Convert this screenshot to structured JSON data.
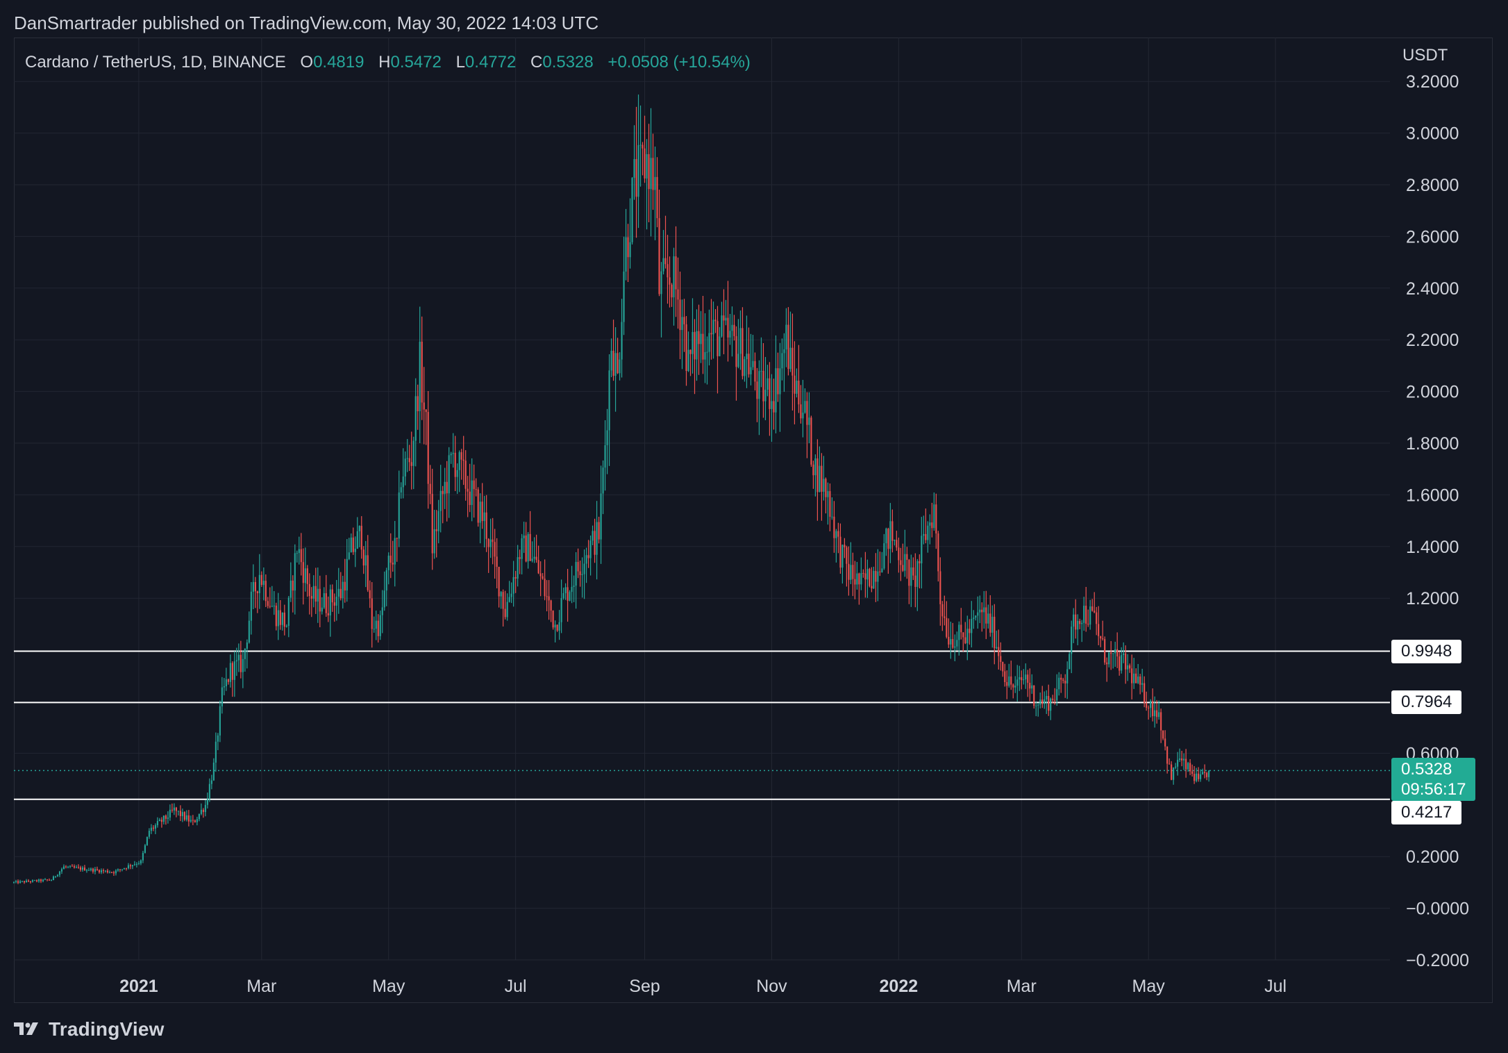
{
  "header": {
    "publisher_line": "DanSmartrader published on TradingView.com, May 30, 2022 14:03 UTC"
  },
  "symbol": {
    "name": "Cardano / TetherUS, 1D, BINANCE",
    "open_label": "O",
    "open": "0.4819",
    "high_label": "H",
    "high": "0.5472",
    "low_label": "L",
    "low": "0.4772",
    "close_label": "C",
    "close": "0.5328",
    "change": "+0.0508 (+10.54%)"
  },
  "axis": {
    "unit": "USDT"
  },
  "price_tags": {
    "level_1": "0.9948",
    "level_2": "0.7964",
    "level_3": "0.4217",
    "current_price": "0.5328",
    "countdown": "09:56:17"
  },
  "footer": {
    "brand": "TradingView"
  },
  "colors": {
    "up": "#26a69a",
    "down": "#ef5350",
    "background": "#131722",
    "grid": "#2a2e39"
  },
  "chart_data": {
    "type": "candlestick",
    "symbol": "Cardano / TetherUS",
    "interval": "1D",
    "exchange": "BINANCE",
    "y_tick_labels": [
      "3.2000",
      "3.0000",
      "2.8000",
      "2.6000",
      "2.4000",
      "2.2000",
      "2.0000",
      "1.8000",
      "1.6000",
      "1.4000",
      "1.2000",
      "0.6000",
      "0.2000",
      "−0.0000",
      "−0.2000"
    ],
    "ylim": [
      -0.2,
      3.3
    ],
    "x_tick_labels": [
      {
        "label": "2021",
        "date": "2021-01-01",
        "bold": true
      },
      {
        "label": "Mar",
        "date": "2021-03-01"
      },
      {
        "label": "May",
        "date": "2021-05-01"
      },
      {
        "label": "Jul",
        "date": "2021-07-01"
      },
      {
        "label": "Sep",
        "date": "2021-09-01"
      },
      {
        "label": "Nov",
        "date": "2021-11-01"
      },
      {
        "label": "2022",
        "date": "2022-01-01",
        "bold": true
      },
      {
        "label": "Mar",
        "date": "2022-03-01"
      },
      {
        "label": "May",
        "date": "2022-05-01"
      },
      {
        "label": "Jul",
        "date": "2022-07-01"
      }
    ],
    "x_range": [
      "2020-11-02",
      "2022-08-25"
    ],
    "horizontal_lines": [
      0.9948,
      0.7964,
      0.4217
    ],
    "current_price": 0.5328,
    "grid": true,
    "price_path": [
      [
        "2020-11-02",
        0.1
      ],
      [
        "2020-11-20",
        0.11
      ],
      [
        "2020-11-26",
        0.16
      ],
      [
        "2020-12-20",
        0.14
      ],
      [
        "2020-12-29",
        0.17
      ],
      [
        "2021-01-02",
        0.18
      ],
      [
        "2021-01-06",
        0.3
      ],
      [
        "2021-01-14",
        0.35
      ],
      [
        "2021-01-18",
        0.38
      ],
      [
        "2021-01-27",
        0.33
      ],
      [
        "2021-02-02",
        0.4
      ],
      [
        "2021-02-06",
        0.55
      ],
      [
        "2021-02-10",
        0.82
      ],
      [
        "2021-02-14",
        0.92
      ],
      [
        "2021-02-20",
        0.95
      ],
      [
        "2021-02-24",
        1.18
      ],
      [
        "2021-02-28",
        1.3
      ],
      [
        "2021-03-07",
        1.15
      ],
      [
        "2021-03-13",
        1.1
      ],
      [
        "2021-03-18",
        1.4
      ],
      [
        "2021-03-25",
        1.2
      ],
      [
        "2021-04-01",
        1.18
      ],
      [
        "2021-04-08",
        1.22
      ],
      [
        "2021-04-13",
        1.38
      ],
      [
        "2021-04-18",
        1.45
      ],
      [
        "2021-04-23",
        1.1
      ],
      [
        "2021-04-27",
        1.1
      ],
      [
        "2021-05-01",
        1.33
      ],
      [
        "2021-05-05",
        1.4
      ],
      [
        "2021-05-07",
        1.68
      ],
      [
        "2021-05-12",
        1.75
      ],
      [
        "2021-05-16",
        2.1
      ],
      [
        "2021-05-19",
        1.85
      ],
      [
        "2021-05-22",
        1.4
      ],
      [
        "2021-05-27",
        1.6
      ],
      [
        "2021-06-01",
        1.75
      ],
      [
        "2021-06-04",
        1.7
      ],
      [
        "2021-06-10",
        1.6
      ],
      [
        "2021-06-16",
        1.5
      ],
      [
        "2021-06-22",
        1.3
      ],
      [
        "2021-06-26",
        1.15
      ],
      [
        "2021-07-03",
        1.38
      ],
      [
        "2021-07-08",
        1.4
      ],
      [
        "2021-07-14",
        1.25
      ],
      [
        "2021-07-20",
        1.1
      ],
      [
        "2021-07-24",
        1.2
      ],
      [
        "2021-07-30",
        1.3
      ],
      [
        "2021-08-04",
        1.38
      ],
      [
        "2021-08-10",
        1.45
      ],
      [
        "2021-08-13",
        1.8
      ],
      [
        "2021-08-16",
        2.2
      ],
      [
        "2021-08-19",
        2.05
      ],
      [
        "2021-08-22",
        2.5
      ],
      [
        "2021-08-27",
        2.8
      ],
      [
        "2021-09-02",
        2.9
      ],
      [
        "2021-09-06",
        2.8
      ],
      [
        "2021-09-08",
        2.4
      ],
      [
        "2021-09-14",
        2.45
      ],
      [
        "2021-09-19",
        2.3
      ],
      [
        "2021-09-22",
        2.1
      ],
      [
        "2021-09-26",
        2.2
      ],
      [
        "2021-10-04",
        2.22
      ],
      [
        "2021-10-11",
        2.2
      ],
      [
        "2021-10-19",
        2.15
      ],
      [
        "2021-10-26",
        2.0
      ],
      [
        "2021-11-02",
        2.0
      ],
      [
        "2021-11-08",
        2.2
      ],
      [
        "2021-11-11",
        2.05
      ],
      [
        "2021-11-16",
        1.95
      ],
      [
        "2021-11-22",
        1.7
      ],
      [
        "2021-11-28",
        1.6
      ],
      [
        "2021-12-03",
        1.4
      ],
      [
        "2021-12-08",
        1.3
      ],
      [
        "2021-12-14",
        1.25
      ],
      [
        "2021-12-20",
        1.3
      ],
      [
        "2021-12-28",
        1.45
      ],
      [
        "2022-01-03",
        1.35
      ],
      [
        "2022-01-08",
        1.25
      ],
      [
        "2022-01-14",
        1.45
      ],
      [
        "2022-01-18",
        1.55
      ],
      [
        "2022-01-21",
        1.2
      ],
      [
        "2022-01-25",
        1.05
      ],
      [
        "2022-02-02",
        1.05
      ],
      [
        "2022-02-10",
        1.15
      ],
      [
        "2022-02-15",
        1.08
      ],
      [
        "2022-02-22",
        0.88
      ],
      [
        "2022-02-26",
        0.85
      ],
      [
        "2022-03-03",
        0.9
      ],
      [
        "2022-03-08",
        0.8
      ],
      [
        "2022-03-15",
        0.8
      ],
      [
        "2022-03-22",
        0.9
      ],
      [
        "2022-03-26",
        1.1
      ],
      [
        "2022-03-30",
        1.15
      ],
      [
        "2022-04-05",
        1.12
      ],
      [
        "2022-04-10",
        0.98
      ],
      [
        "2022-04-20",
        0.94
      ],
      [
        "2022-04-27",
        0.85
      ],
      [
        "2022-05-02",
        0.78
      ],
      [
        "2022-05-06",
        0.76
      ],
      [
        "2022-05-09",
        0.62
      ],
      [
        "2022-05-12",
        0.5
      ],
      [
        "2022-05-15",
        0.58
      ],
      [
        "2022-05-20",
        0.54
      ],
      [
        "2022-05-25",
        0.49
      ],
      [
        "2022-05-30",
        0.5328
      ]
    ]
  }
}
